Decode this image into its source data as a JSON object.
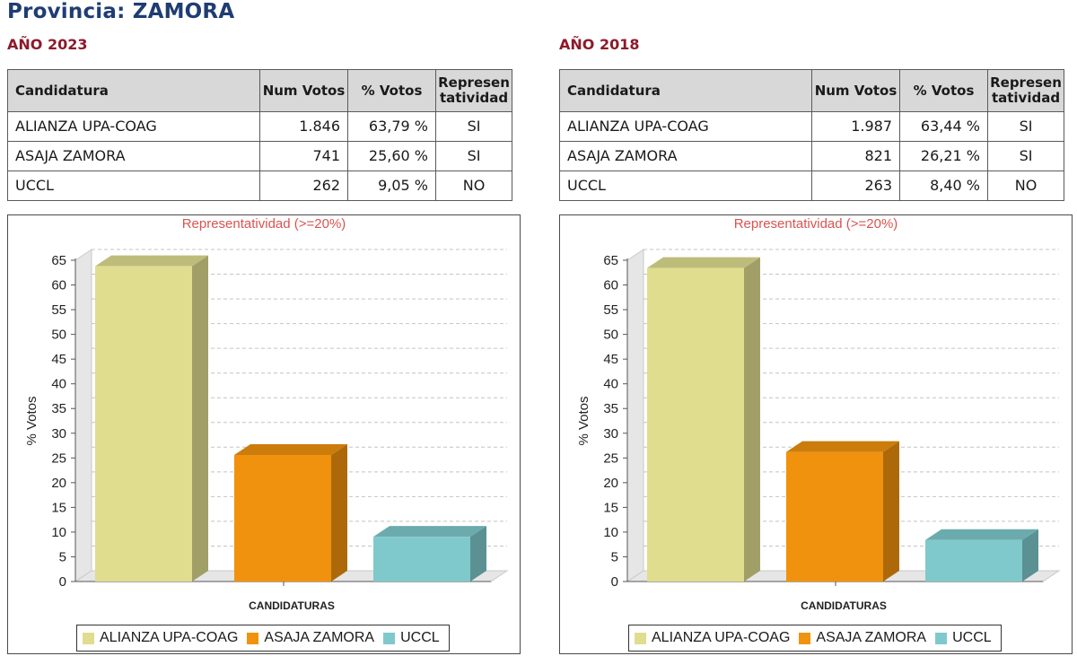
{
  "page": {
    "title": "Provincia: ZAMORA"
  },
  "table_headers": {
    "candidatura": "Candidatura",
    "num_votos": "Num Votos",
    "pct_votos": "% Votos",
    "repres_1": "Represen",
    "repres_2": "tatividad"
  },
  "colors": {
    "title": "#1e3d73",
    "year": "#8c1a2a",
    "alianza": "#e0dd8f",
    "asaja": "#f0920d",
    "uccl": "#7fc9cc"
  },
  "panels": [
    {
      "year_title": "AÑO 2023",
      "rows": [
        {
          "candidatura": "ALIANZA UPA-COAG",
          "num_votos": "1.846",
          "pct_votos": "63,79 %",
          "representatividad": "SI"
        },
        {
          "candidatura": "ASAJA ZAMORA",
          "num_votos": "741",
          "pct_votos": "25,60 %",
          "representatividad": "SI"
        },
        {
          "candidatura": "UCCL",
          "num_votos": "262",
          "pct_votos": "9,05 %",
          "representatividad": "NO"
        }
      ]
    },
    {
      "year_title": "AÑO 2018",
      "rows": [
        {
          "candidatura": "ALIANZA UPA-COAG",
          "num_votos": "1.987",
          "pct_votos": "63,44 %",
          "representatividad": "SI"
        },
        {
          "candidatura": "ASAJA ZAMORA",
          "num_votos": "821",
          "pct_votos": "26,21 %",
          "representatividad": "SI"
        },
        {
          "candidatura": "UCCL",
          "num_votos": "263",
          "pct_votos": "8,40 %",
          "representatividad": "NO"
        }
      ]
    }
  ],
  "chart_data": [
    {
      "type": "bar",
      "title": "Representatividad (>=20%)",
      "xlabel": "CANDIDATURAS",
      "ylabel": "% Votos",
      "ylim": [
        0,
        65
      ],
      "yticks": [
        0,
        5,
        10,
        15,
        20,
        25,
        30,
        35,
        40,
        45,
        50,
        55,
        60,
        65
      ],
      "categories": [
        "ALIANZA UPA-COAG",
        "ASAJA ZAMORA",
        "UCCL"
      ],
      "values": [
        63.79,
        25.6,
        9.05
      ],
      "legend": [
        "ALIANZA UPA-COAG",
        "ASAJA ZAMORA",
        "UCCL"
      ],
      "legend_position": "bottom"
    },
    {
      "type": "bar",
      "title": "Representatividad (>=20%)",
      "xlabel": "CANDIDATURAS",
      "ylabel": "% Votos",
      "ylim": [
        0,
        65
      ],
      "yticks": [
        0,
        5,
        10,
        15,
        20,
        25,
        30,
        35,
        40,
        45,
        50,
        55,
        60,
        65
      ],
      "categories": [
        "ALIANZA UPA-COAG",
        "ASAJA ZAMORA",
        "UCCL"
      ],
      "values": [
        63.44,
        26.21,
        8.4
      ],
      "legend": [
        "ALIANZA UPA-COAG",
        "ASAJA ZAMORA",
        "UCCL"
      ],
      "legend_position": "bottom"
    }
  ]
}
